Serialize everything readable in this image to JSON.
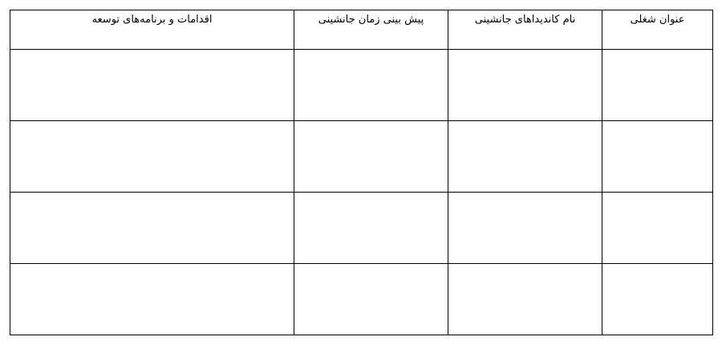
{
  "table": {
    "header": [
      "عنوان شغلی",
      "نام کاندیداهای جانشینی",
      "پیش بینی زمان جانشینی",
      "اقدامات و برنامه‌های توسعه"
    ]
  }
}
